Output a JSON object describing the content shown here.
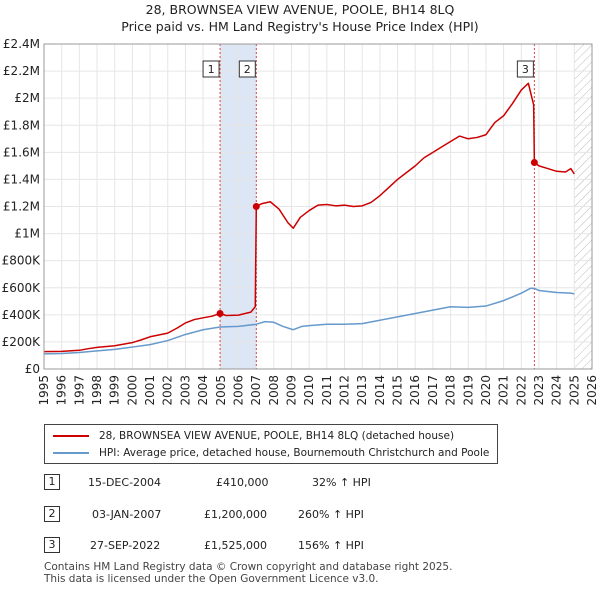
{
  "chart_data": {
    "type": "line",
    "title": "28, BROWNSEA VIEW AVENUE, POOLE, BH14 8LQ",
    "subtitle": "Price paid vs. HM Land Registry's House Price Index (HPI)",
    "xlim": [
      1995,
      2026
    ],
    "ylim": [
      0,
      2400000
    ],
    "x_ticks": [
      1995,
      1996,
      1997,
      1998,
      1999,
      2000,
      2001,
      2002,
      2003,
      2004,
      2005,
      2006,
      2007,
      2008,
      2009,
      2010,
      2011,
      2012,
      2013,
      2014,
      2015,
      2016,
      2017,
      2018,
      2019,
      2020,
      2021,
      2022,
      2023,
      2024,
      2025,
      2026
    ],
    "y_ticks": [
      {
        "value": 0,
        "label": "£0"
      },
      {
        "value": 200000,
        "label": "£200K"
      },
      {
        "value": 400000,
        "label": "£400K"
      },
      {
        "value": 600000,
        "label": "£600K"
      },
      {
        "value": 800000,
        "label": "£800K"
      },
      {
        "value": 1000000,
        "label": "£1M"
      },
      {
        "value": 1200000,
        "label": "£1.2M"
      },
      {
        "value": 1400000,
        "label": "£1.4M"
      },
      {
        "value": 1600000,
        "label": "£1.6M"
      },
      {
        "value": 1800000,
        "label": "£1.8M"
      },
      {
        "value": 2000000,
        "label": "£2M"
      },
      {
        "value": 2200000,
        "label": "£2.2M"
      },
      {
        "value": 2400000,
        "label": "£2.4M"
      }
    ],
    "grid": true,
    "colors": {
      "property": "#cc0000",
      "hpi": "#6699cc",
      "shade": "#dde6f5",
      "vline": "#dd4444",
      "hatch": "#bbbbbb"
    },
    "shaded_ranges": [
      [
        2004.96,
        2007.01
      ]
    ],
    "future_from": 2025.0,
    "series": [
      {
        "name": "28, BROWNSEA VIEW AVENUE, POOLE, BH14 8LQ (detached house)",
        "color": "#cc0000",
        "points": [
          [
            1995.0,
            128000
          ],
          [
            1996.0,
            130000
          ],
          [
            1997.0,
            138000
          ],
          [
            1997.5,
            150000
          ],
          [
            1998.0,
            160000
          ],
          [
            1999.0,
            172000
          ],
          [
            2000.0,
            195000
          ],
          [
            2000.5,
            215000
          ],
          [
            2001.0,
            238000
          ],
          [
            2002.0,
            265000
          ],
          [
            2002.5,
            300000
          ],
          [
            2003.0,
            340000
          ],
          [
            2003.5,
            365000
          ],
          [
            2004.0,
            378000
          ],
          [
            2004.5,
            390000
          ],
          [
            2004.96,
            410000
          ],
          [
            2005.3,
            395000
          ],
          [
            2006.0,
            398000
          ],
          [
            2006.7,
            420000
          ],
          [
            2006.95,
            460000
          ],
          [
            2007.01,
            1200000
          ],
          [
            2007.3,
            1220000
          ],
          [
            2007.8,
            1235000
          ],
          [
            2008.3,
            1180000
          ],
          [
            2008.8,
            1080000
          ],
          [
            2009.1,
            1040000
          ],
          [
            2009.5,
            1120000
          ],
          [
            2010.0,
            1170000
          ],
          [
            2010.5,
            1210000
          ],
          [
            2011.0,
            1215000
          ],
          [
            2011.5,
            1205000
          ],
          [
            2012.0,
            1210000
          ],
          [
            2012.5,
            1200000
          ],
          [
            2013.0,
            1205000
          ],
          [
            2013.5,
            1230000
          ],
          [
            2014.0,
            1280000
          ],
          [
            2014.5,
            1340000
          ],
          [
            2015.0,
            1400000
          ],
          [
            2015.5,
            1450000
          ],
          [
            2016.0,
            1500000
          ],
          [
            2016.5,
            1560000
          ],
          [
            2017.0,
            1600000
          ],
          [
            2017.5,
            1640000
          ],
          [
            2018.0,
            1680000
          ],
          [
            2018.5,
            1720000
          ],
          [
            2019.0,
            1700000
          ],
          [
            2019.5,
            1710000
          ],
          [
            2020.0,
            1730000
          ],
          [
            2020.5,
            1820000
          ],
          [
            2021.0,
            1870000
          ],
          [
            2021.5,
            1960000
          ],
          [
            2022.0,
            2060000
          ],
          [
            2022.4,
            2110000
          ],
          [
            2022.7,
            1950000
          ],
          [
            2022.74,
            1525000
          ],
          [
            2023.0,
            1500000
          ],
          [
            2023.5,
            1480000
          ],
          [
            2024.0,
            1460000
          ],
          [
            2024.5,
            1455000
          ],
          [
            2024.8,
            1480000
          ],
          [
            2025.0,
            1440000
          ]
        ]
      },
      {
        "name": "HPI: Average price, detached house, Bournemouth Christchurch and Poole",
        "color": "#6699cc",
        "points": [
          [
            1995.0,
            112000
          ],
          [
            1996.0,
            114000
          ],
          [
            1997.0,
            122000
          ],
          [
            1998.0,
            134000
          ],
          [
            1999.0,
            145000
          ],
          [
            2000.0,
            162000
          ],
          [
            2001.0,
            180000
          ],
          [
            2002.0,
            210000
          ],
          [
            2003.0,
            255000
          ],
          [
            2004.0,
            290000
          ],
          [
            2004.96,
            310000
          ],
          [
            2006.0,
            315000
          ],
          [
            2007.0,
            330000
          ],
          [
            2007.5,
            350000
          ],
          [
            2008.0,
            345000
          ],
          [
            2008.5,
            315000
          ],
          [
            2009.1,
            290000
          ],
          [
            2009.6,
            315000
          ],
          [
            2010.0,
            320000
          ],
          [
            2011.0,
            330000
          ],
          [
            2012.0,
            330000
          ],
          [
            2013.0,
            335000
          ],
          [
            2014.0,
            360000
          ],
          [
            2015.0,
            385000
          ],
          [
            2016.0,
            410000
          ],
          [
            2017.0,
            435000
          ],
          [
            2018.0,
            460000
          ],
          [
            2019.0,
            455000
          ],
          [
            2020.0,
            465000
          ],
          [
            2021.0,
            505000
          ],
          [
            2022.0,
            560000
          ],
          [
            2022.5,
            595000
          ],
          [
            2022.74,
            595000
          ],
          [
            2023.0,
            580000
          ],
          [
            2024.0,
            565000
          ],
          [
            2024.8,
            560000
          ],
          [
            2025.0,
            555000
          ]
        ]
      }
    ],
    "sales": [
      {
        "label": "1",
        "date": "15-DEC-2004",
        "year": 2004.96,
        "price": 410000,
        "price_text": "£410,000",
        "hpi_text": "32% ↑ HPI"
      },
      {
        "label": "2",
        "date": "03-JAN-2007",
        "year": 2007.01,
        "price": 1200000,
        "price_text": "£1,200,000",
        "hpi_text": "260% ↑ HPI"
      },
      {
        "label": "3",
        "date": "27-SEP-2022",
        "year": 2022.74,
        "price": 1525000,
        "price_text": "£1,525,000",
        "hpi_text": "156% ↑ HPI"
      }
    ]
  },
  "legend": {
    "property": "28, BROWNSEA VIEW AVENUE, POOLE, BH14 8LQ (detached house)",
    "hpi": "HPI: Average price, detached house, Bournemouth Christchurch and Poole"
  },
  "footer": {
    "line1": "Contains HM Land Registry data © Crown copyright and database right 2025.",
    "line2": "This data is licensed under the Open Government Licence v3.0."
  }
}
